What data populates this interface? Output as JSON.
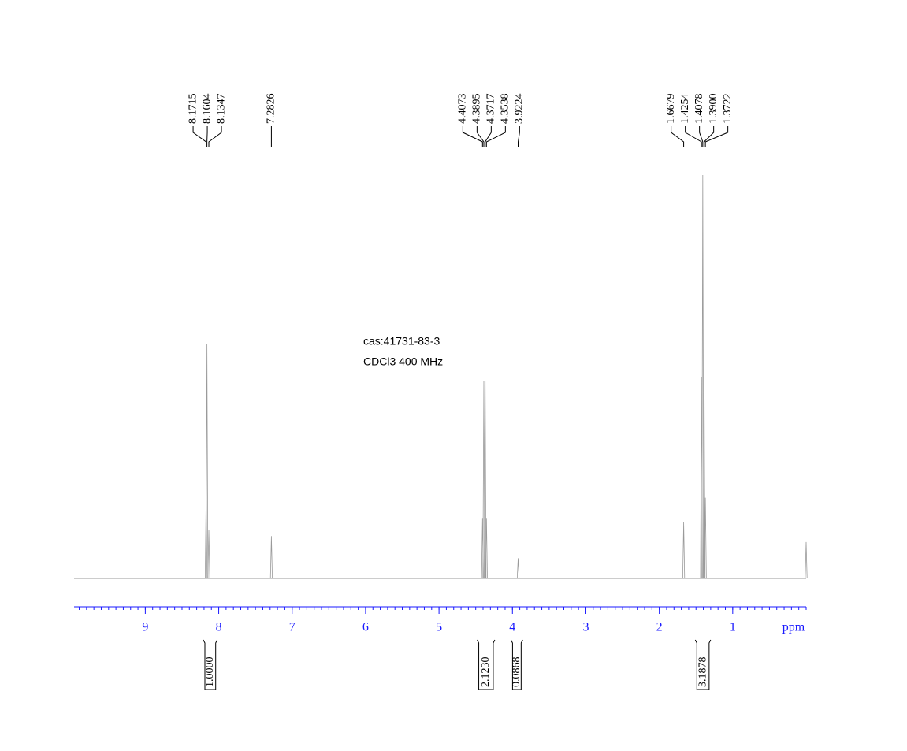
{
  "chart_data": {
    "type": "nmr",
    "annotations": [
      "cas:41731-83-3",
      "CDCl3   400 MHz"
    ],
    "x_label": "ppm",
    "xlim": [
      9.97,
      0
    ],
    "xticks": [
      9,
      8,
      7,
      6,
      5,
      4,
      3,
      2,
      1
    ],
    "ylim": [
      0,
      100
    ],
    "axis_color": "#1a1aff",
    "spectrum_color": "#9a9a9a",
    "peaks": {
      "x": [
        8.1715,
        8.1604,
        8.1347,
        7.2826,
        4.4073,
        4.3895,
        4.3717,
        4.3538,
        3.9224,
        1.6679,
        1.4254,
        1.4078,
        1.39,
        1.3722,
        0
      ],
      "values": [
        20,
        58,
        12,
        10.5,
        15,
        49,
        49,
        15,
        5,
        14,
        50,
        100,
        50,
        20,
        9
      ]
    },
    "peak_labels": [
      8.1715,
      8.1604,
      8.1347,
      7.2826,
      4.4073,
      4.3895,
      4.3717,
      4.3538,
      3.9224,
      1.6679,
      1.4254,
      1.4078,
      {
        "value": 1.39,
        "label": "1.3900"
      },
      1.3722
    ],
    "integrals": [
      {
        "value": 1,
        "label": "1.0000",
        "range": [
          8.21,
          8.02
        ]
      },
      {
        "value": 2.123,
        "label": "2.1230",
        "range": [
          4.48,
          4.24
        ]
      },
      {
        "value": 0.0868,
        "label": "0.0868",
        "range": [
          4.02,
          3.86
        ]
      },
      {
        "value": 3.1878,
        "label": "3.1878",
        "range": [
          1.51,
          1.3
        ]
      }
    ]
  }
}
